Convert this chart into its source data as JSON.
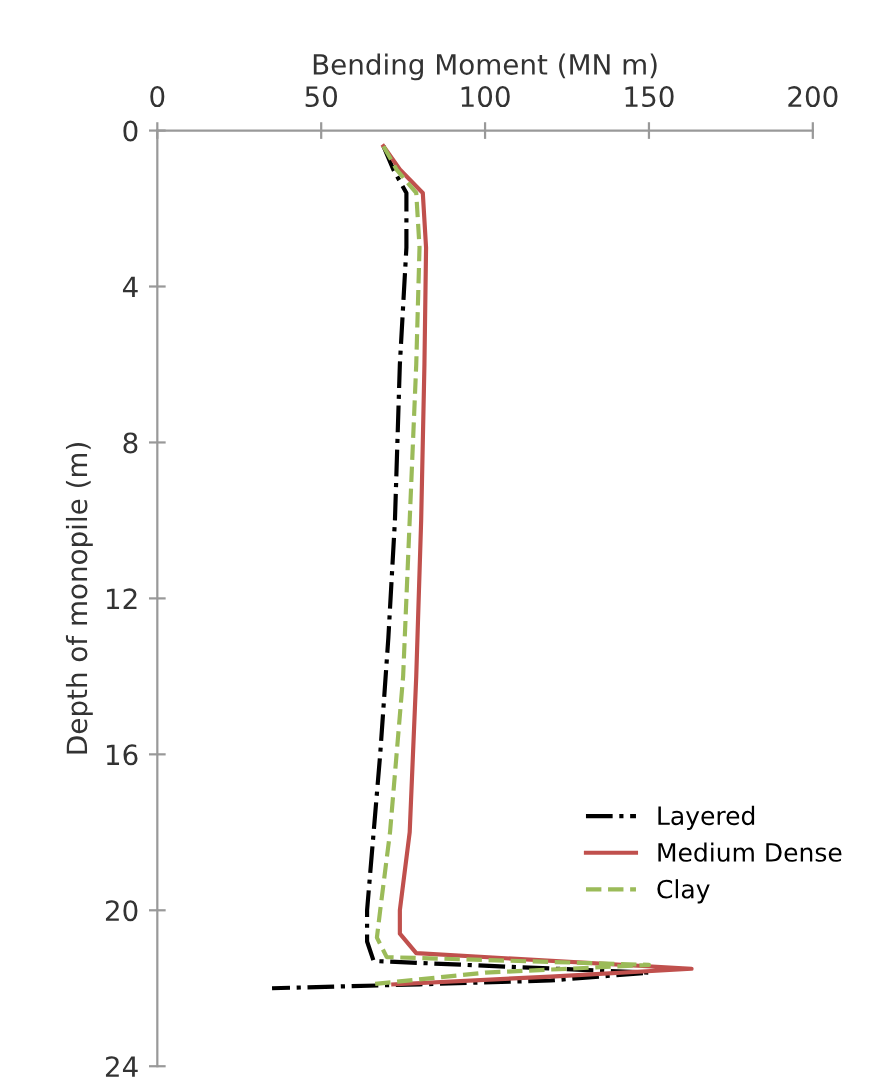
{
  "chart_data": {
    "type": "line",
    "xlabel": "Bending Moment (MN m)",
    "ylabel": "Depth of monopile (m)",
    "xlim": [
      0,
      200
    ],
    "xticks": [
      0,
      50,
      100,
      150,
      200
    ],
    "ylim": [
      24,
      0
    ],
    "yticks": [
      0,
      4,
      8,
      12,
      16,
      20,
      24
    ],
    "grid": false,
    "legend": "bottom right",
    "marker": "none",
    "series": [
      {
        "name": "Layered",
        "color": "#000000",
        "line_style": "dashdot",
        "x": [
          69,
          72,
          76,
          76,
          74,
          72.5,
          70.5,
          68,
          66,
          64,
          64,
          66,
          150,
          120,
          80,
          35
        ],
        "values": [
          0.4,
          1,
          1.6,
          3,
          6,
          10,
          13,
          16,
          18,
          20,
          20.8,
          21.3,
          21.6,
          21.8,
          21.9,
          22.0
        ]
      },
      {
        "name": "Medium Dense",
        "color": "#c0504d",
        "line_style": "solid",
        "x": [
          69,
          74,
          81,
          82,
          81.5,
          80.5,
          79,
          77,
          74,
          74,
          79,
          163,
          120,
          72
        ],
        "values": [
          0.4,
          1,
          1.6,
          3,
          6,
          10,
          14,
          18,
          20,
          20.6,
          21.1,
          21.5,
          21.7,
          21.9
        ]
      },
      {
        "name": "Clay",
        "color": "#9bbb59",
        "line_style": "dashed",
        "x": [
          69,
          73,
          79,
          80,
          79,
          77,
          75,
          71,
          68,
          67,
          70,
          150,
          100,
          65
        ],
        "values": [
          0.4,
          1,
          1.6,
          3,
          6,
          10,
          14,
          18,
          20,
          20.7,
          21.2,
          21.4,
          21.6,
          21.9
        ]
      }
    ]
  }
}
